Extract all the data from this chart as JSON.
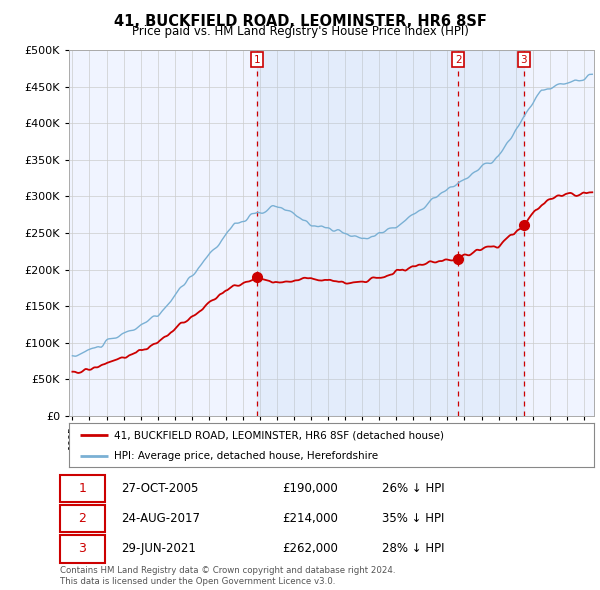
{
  "title": "41, BUCKFIELD ROAD, LEOMINSTER, HR6 8SF",
  "subtitle": "Price paid vs. HM Land Registry's House Price Index (HPI)",
  "legend_label_red": "41, BUCKFIELD ROAD, LEOMINSTER, HR6 8SF (detached house)",
  "legend_label_blue": "HPI: Average price, detached house, Herefordshire",
  "footer1": "Contains HM Land Registry data © Crown copyright and database right 2024.",
  "footer2": "This data is licensed under the Open Government Licence v3.0.",
  "transactions": [
    {
      "num": 1,
      "date": "27-OCT-2005",
      "price": "£190,000",
      "pct": "26% ↓ HPI"
    },
    {
      "num": 2,
      "date": "24-AUG-2017",
      "price": "£214,000",
      "pct": "35% ↓ HPI"
    },
    {
      "num": 3,
      "date": "29-JUN-2021",
      "price": "£262,000",
      "pct": "28% ↓ HPI"
    }
  ],
  "transaction_dates_decimal": [
    2005.82,
    2017.64,
    2021.49
  ],
  "transaction_prices": [
    190000,
    214000,
    262000
  ],
  "ylim": [
    0,
    500000
  ],
  "yticks": [
    0,
    50000,
    100000,
    150000,
    200000,
    250000,
    300000,
    350000,
    400000,
    450000,
    500000
  ],
  "color_red": "#cc0000",
  "color_blue": "#7ab0d4",
  "color_shade": "#ddeeff",
  "color_dashed": "#cc0000",
  "grid_color": "#cccccc",
  "background_color": "#ffffff",
  "chart_bg": "#f0f4ff"
}
